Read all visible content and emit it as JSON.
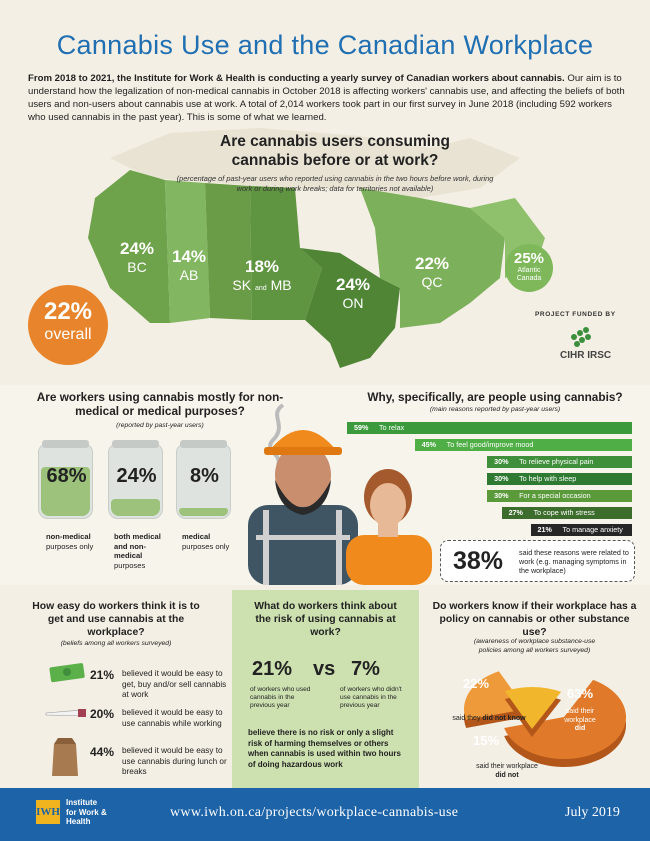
{
  "title": "Cannabis Use and the Canadian Workplace",
  "intro": {
    "bold": "From 2018 to 2021, the Institute for Work & Health is conducting a yearly survey of Canadian workers about cannabis.",
    "rest": " Our aim is to understand how the legalization of non-medical cannabis in October 2018 is affecting workers' cannabis use, and affecting the beliefs of both users and non-users about cannabis use at work. A total of 2,014 workers took part in our first survey in June 2018 (including 592 workers who used cannabis in the past year). This is some of what we learned."
  },
  "map": {
    "question": "Are cannabis users consuming cannabis before or at work?",
    "note": "(percentage of past-year users who reported using cannabis in the two hours before work, during work or during work breaks; data for territories not available)",
    "regions": [
      {
        "pct": "24%",
        "name": "BC"
      },
      {
        "pct": "14%",
        "name": "AB"
      },
      {
        "pct": "18%",
        "name_a": "SK",
        "and": "and",
        "name_b": "MB"
      },
      {
        "pct": "24%",
        "name": "ON"
      },
      {
        "pct": "22%",
        "name": "QC"
      }
    ],
    "atlantic": {
      "pct": "25%",
      "name": "Atlantic Canada"
    },
    "overall": {
      "pct": "22%",
      "label": "overall"
    },
    "colors": {
      "dark": "#5f9441",
      "mid": "#73a84f",
      "light": "#86b862"
    }
  },
  "funding": {
    "label": "PROJECT FUNDED BY",
    "org": "CIHR IRSC"
  },
  "purpose": {
    "question": "Are workers using cannabis mostly for non-medical or medical purposes?",
    "note": "(reported by past-year users)",
    "jars": [
      {
        "pct": "68%",
        "label_bold": "non-medical",
        "label_rest": "purposes only",
        "fill": 0.68
      },
      {
        "pct": "24%",
        "label_bold": "both medical and non-medical",
        "label_rest": "purposes",
        "fill": 0.24
      },
      {
        "pct": "8%",
        "label_bold": "medical",
        "label_rest": "purposes only",
        "fill": 0.08
      }
    ]
  },
  "reasons": {
    "question": "Why, specifically, are people using cannabis?",
    "note": "(main reasons reported by past-year users)",
    "items": [
      {
        "value": "59%",
        "label": "To relax",
        "color": "#3a9a3c"
      },
      {
        "value": "45%",
        "label": "To feel good/improve mood",
        "color": "#4fae45"
      },
      {
        "value": "30%",
        "label": "To relieve physical pain",
        "color": "#3f8f3a"
      },
      {
        "value": "30%",
        "label": "To help with sleep",
        "color": "#2f7a32"
      },
      {
        "value": "30%",
        "label": "For a special occasion",
        "color": "#5a9a3a"
      },
      {
        "value": "27%",
        "label": "To cope with stress",
        "color": "#3c6d2c"
      },
      {
        "value": "21%",
        "label": "To manage anxiety",
        "color": "#262626"
      }
    ],
    "related": {
      "pct": "38%",
      "text": "said these reasons were related to work (e.g. managing symptoms in the workplace)"
    }
  },
  "ease": {
    "question": "How easy do workers think it is to get and use cannabis at the workplace?",
    "note": "(beliefs among all workers surveyed)",
    "items": [
      {
        "pct": "21%",
        "text": "believed it would be easy to get, buy and/or sell cannabis at work",
        "icon": "cash-icon"
      },
      {
        "pct": "20%",
        "text": "believed it would be easy to use cannabis while working",
        "icon": "joint-icon"
      },
      {
        "pct": "44%",
        "text": "believed it would be easy to use cannabis during lunch or breaks",
        "icon": "lunch-bag-icon"
      }
    ]
  },
  "risk": {
    "question": "What do workers think about the risk of using cannabis at work?",
    "users_pct": "21%",
    "vs": "vs",
    "nonusers_pct": "7%",
    "users_text": "of workers who used cannabis in the previous year",
    "nonusers_text": "of workers who didn't use cannabis in the previous year",
    "note": "believe there is no risk or only a slight risk of harming themselves or others when cannabis is used within two hours of doing hazardous work"
  },
  "policy": {
    "question": "Do workers know if their workplace has a policy on cannabis or other substance use?",
    "note": "(awareness of workplace substance-use policies among all workers surveyed)",
    "slices": [
      {
        "pct": "63%",
        "label_a": "said their workplace",
        "label_b": "did",
        "value": 63,
        "color": "#e07a2a"
      },
      {
        "pct": "22%",
        "label_a": "said they",
        "label_b": "did not know",
        "value": 22,
        "color": "#ee9a3a"
      },
      {
        "pct": "15%",
        "label_a": "said their workplace",
        "label_b": "did not",
        "value": 15,
        "color": "#f2b62c"
      }
    ]
  },
  "footer": {
    "logo": "IWH",
    "org_line1": "Institute",
    "org_line2": "for Work &",
    "org_line3": "Health",
    "url": "www.iwh.on.ca/projects/workplace-cannabis-use",
    "date": "July 2019"
  }
}
